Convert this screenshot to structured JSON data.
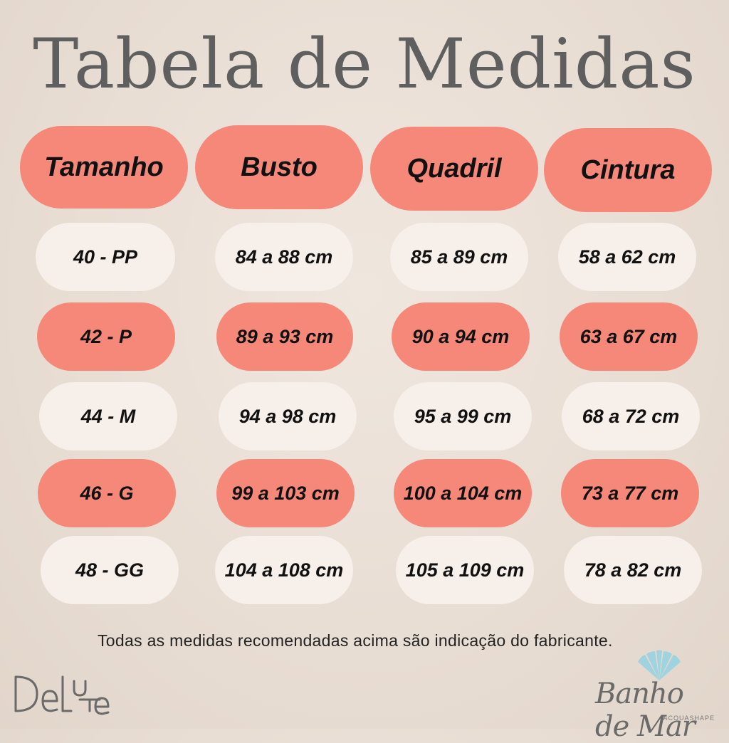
{
  "title": "Tabela de Medidas",
  "headers": [
    "Tamanho",
    "Busto",
    "Quadril",
    "Cintura"
  ],
  "rows": [
    {
      "tamanho": "40 - PP",
      "busto": "84 a 88 cm",
      "quadril": "85 a 89 cm",
      "cintura": "58 a 62 cm",
      "style": "light"
    },
    {
      "tamanho": "42 - P",
      "busto": "89 a 93 cm",
      "quadril": "90 a 94 cm",
      "cintura": "63 a 67 cm",
      "style": "coral"
    },
    {
      "tamanho": "44 - M",
      "busto": "94 a 98 cm",
      "quadril": "95 a 99 cm",
      "cintura": "68 a 72 cm",
      "style": "light"
    },
    {
      "tamanho": "46 - G",
      "busto": "99 a 103 cm",
      "quadril": "100 a 104 cm",
      "cintura": "73 a 77 cm",
      "style": "coral"
    },
    {
      "tamanho": "48 - GG",
      "busto": "104 a 108 cm",
      "quadril": "105 a 109 cm",
      "cintura": "78 a 82 cm",
      "style": "light"
    }
  ],
  "note": "Todas as medidas recomendadas acima são indicação do fabricante.",
  "brands": {
    "left": "DeLuTe",
    "right_main": "Banho de Mar",
    "right_sub": "ACQUASHAPE"
  },
  "colors": {
    "coral": "#f6887a",
    "light": "#f6efea",
    "title": "#5f5f5f",
    "shell": "#9fd3df"
  }
}
